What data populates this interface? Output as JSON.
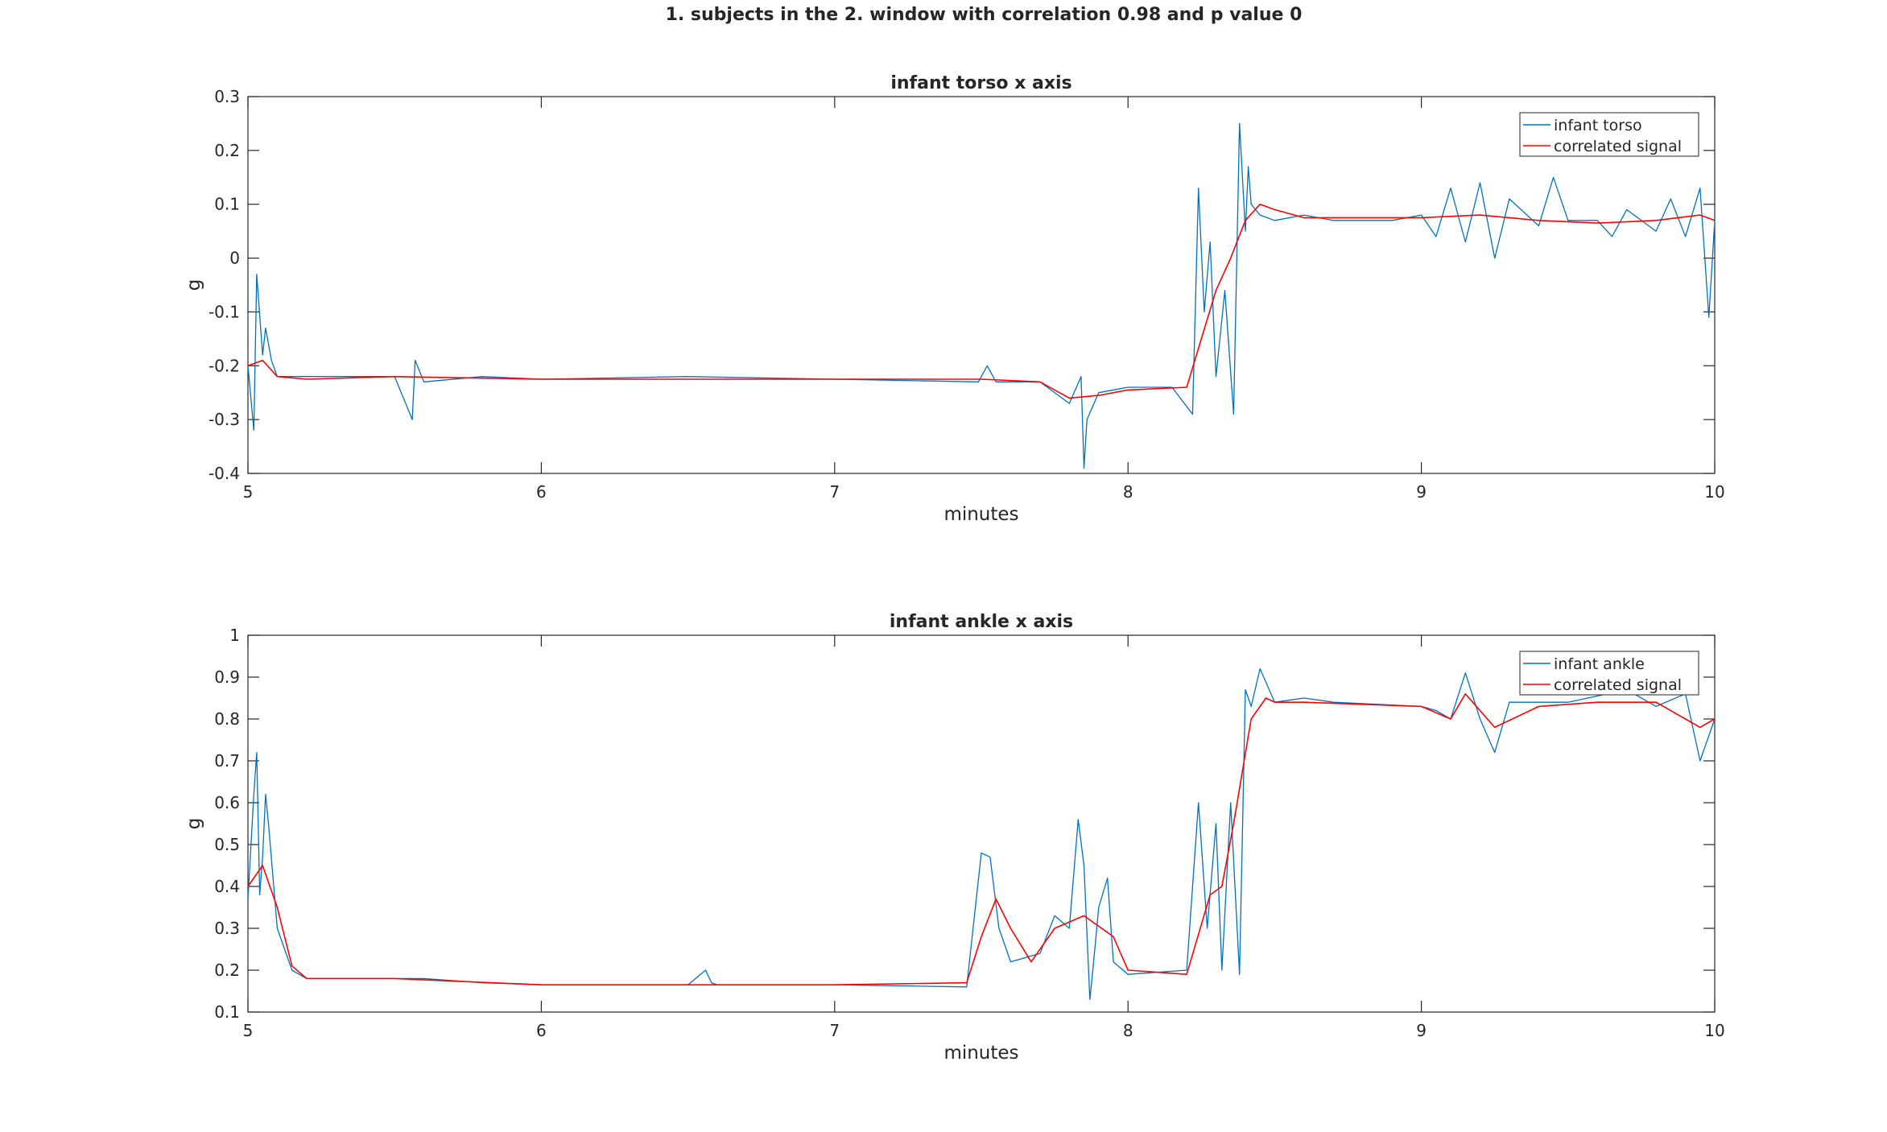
{
  "figure": {
    "suptitle": "1. subjects in the 2. window  with correlation 0.98 and p value 0"
  },
  "chart_data": [
    {
      "type": "line",
      "title": "infant torso x axis",
      "xlabel": "minutes",
      "ylabel": "g",
      "xlim": [
        5,
        10
      ],
      "ylim": [
        -0.4,
        0.3
      ],
      "xticks": [
        "5",
        "6",
        "7",
        "8",
        "9",
        "10"
      ],
      "yticks": [
        "-0.4",
        "-0.3",
        "-0.2",
        "-0.1",
        "0",
        "0.1",
        "0.2",
        "0.3"
      ],
      "legend_position": "top-right",
      "grid": false,
      "series": [
        {
          "name": "infant torso",
          "color": "#0072BD",
          "x": [
            5.0,
            5.02,
            5.03,
            5.05,
            5.06,
            5.08,
            5.1,
            5.2,
            5.5,
            5.56,
            5.57,
            5.6,
            5.8,
            6.0,
            6.5,
            7.0,
            7.49,
            7.52,
            7.55,
            7.7,
            7.8,
            7.84,
            7.85,
            7.86,
            7.9,
            8.0,
            8.15,
            8.22,
            8.24,
            8.26,
            8.28,
            8.3,
            8.33,
            8.36,
            8.38,
            8.4,
            8.41,
            8.42,
            8.45,
            8.5,
            8.6,
            8.7,
            8.9,
            9.0,
            9.05,
            9.1,
            9.15,
            9.2,
            9.25,
            9.3,
            9.4,
            9.45,
            9.5,
            9.6,
            9.65,
            9.7,
            9.8,
            9.85,
            9.9,
            9.95,
            9.98,
            10.0
          ],
          "y": [
            -0.2,
            -0.32,
            -0.03,
            -0.18,
            -0.13,
            -0.19,
            -0.22,
            -0.22,
            -0.22,
            -0.3,
            -0.19,
            -0.23,
            -0.22,
            -0.225,
            -0.22,
            -0.225,
            -0.23,
            -0.2,
            -0.23,
            -0.23,
            -0.27,
            -0.22,
            -0.39,
            -0.3,
            -0.25,
            -0.24,
            -0.24,
            -0.29,
            0.13,
            -0.1,
            0.03,
            -0.22,
            -0.06,
            -0.29,
            0.25,
            0.05,
            0.17,
            0.1,
            0.08,
            0.07,
            0.08,
            0.07,
            0.07,
            0.08,
            0.04,
            0.13,
            0.03,
            0.14,
            0.0,
            0.11,
            0.06,
            0.15,
            0.07,
            0.07,
            0.04,
            0.09,
            0.05,
            0.11,
            0.04,
            0.13,
            -0.11,
            0.07
          ]
        },
        {
          "name": "correlated signal",
          "color": "#FF0000",
          "x": [
            5.0,
            5.05,
            5.1,
            5.2,
            5.5,
            6.0,
            7.0,
            7.5,
            7.7,
            7.8,
            7.9,
            8.0,
            8.2,
            8.25,
            8.3,
            8.35,
            8.4,
            8.45,
            8.5,
            8.6,
            9.0,
            9.2,
            9.4,
            9.6,
            9.8,
            9.95,
            10.0
          ],
          "y": [
            -0.2,
            -0.19,
            -0.22,
            -0.225,
            -0.22,
            -0.225,
            -0.225,
            -0.225,
            -0.23,
            -0.26,
            -0.255,
            -0.245,
            -0.24,
            -0.15,
            -0.06,
            0.0,
            0.07,
            0.1,
            0.09,
            0.075,
            0.075,
            0.08,
            0.07,
            0.065,
            0.07,
            0.08,
            0.07
          ]
        }
      ]
    },
    {
      "type": "line",
      "title": "infant ankle x axis",
      "xlabel": "minutes",
      "ylabel": "g",
      "xlim": [
        5,
        10
      ],
      "ylim": [
        0.1,
        1.0
      ],
      "xticks": [
        "5",
        "6",
        "7",
        "8",
        "9",
        "10"
      ],
      "yticks": [
        "0.1",
        "0.2",
        "0.3",
        "0.4",
        "0.5",
        "0.6",
        "0.7",
        "0.8",
        "0.9",
        "1"
      ],
      "legend_position": "top-right",
      "grid": false,
      "series": [
        {
          "name": "infant ankle",
          "color": "#0072BD",
          "x": [
            5.0,
            5.02,
            5.03,
            5.04,
            5.05,
            5.06,
            5.07,
            5.1,
            5.15,
            5.2,
            5.4,
            5.6,
            5.8,
            6.0,
            6.5,
            6.56,
            6.58,
            6.6,
            7.0,
            7.45,
            7.5,
            7.53,
            7.56,
            7.6,
            7.7,
            7.75,
            7.8,
            7.83,
            7.85,
            7.87,
            7.88,
            7.9,
            7.93,
            7.95,
            8.0,
            8.2,
            8.24,
            8.27,
            8.3,
            8.32,
            8.35,
            8.38,
            8.4,
            8.42,
            8.45,
            8.5,
            8.6,
            8.7,
            9.0,
            9.05,
            9.1,
            9.15,
            9.2,
            9.25,
            9.3,
            9.5,
            9.7,
            9.8,
            9.9,
            9.95,
            10.0
          ],
          "y": [
            0.37,
            0.62,
            0.72,
            0.38,
            0.47,
            0.62,
            0.55,
            0.3,
            0.2,
            0.18,
            0.18,
            0.18,
            0.17,
            0.165,
            0.165,
            0.2,
            0.17,
            0.165,
            0.165,
            0.16,
            0.48,
            0.47,
            0.3,
            0.22,
            0.24,
            0.33,
            0.3,
            0.56,
            0.45,
            0.13,
            0.2,
            0.35,
            0.42,
            0.22,
            0.19,
            0.2,
            0.6,
            0.3,
            0.55,
            0.2,
            0.6,
            0.19,
            0.87,
            0.83,
            0.92,
            0.84,
            0.85,
            0.84,
            0.83,
            0.82,
            0.8,
            0.91,
            0.8,
            0.72,
            0.84,
            0.84,
            0.87,
            0.83,
            0.86,
            0.7,
            0.8
          ]
        },
        {
          "name": "correlated signal",
          "color": "#FF0000",
          "x": [
            5.0,
            5.05,
            5.1,
            5.15,
            5.2,
            5.5,
            6.0,
            7.0,
            7.45,
            7.5,
            7.55,
            7.6,
            7.67,
            7.75,
            7.85,
            7.95,
            8.0,
            8.2,
            8.28,
            8.32,
            8.36,
            8.42,
            8.47,
            8.5,
            8.6,
            9.0,
            9.1,
            9.15,
            9.25,
            9.4,
            9.6,
            9.8,
            9.9,
            9.95,
            10.0
          ],
          "y": [
            0.4,
            0.45,
            0.35,
            0.21,
            0.18,
            0.18,
            0.165,
            0.165,
            0.17,
            0.28,
            0.37,
            0.3,
            0.22,
            0.3,
            0.33,
            0.28,
            0.2,
            0.19,
            0.38,
            0.4,
            0.55,
            0.8,
            0.85,
            0.84,
            0.84,
            0.83,
            0.8,
            0.86,
            0.78,
            0.83,
            0.84,
            0.84,
            0.8,
            0.78,
            0.8
          ]
        }
      ]
    }
  ]
}
